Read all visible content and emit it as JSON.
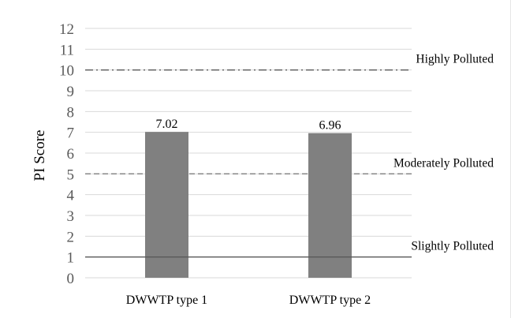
{
  "chart_data": {
    "type": "bar",
    "title": "",
    "xlabel": "",
    "ylabel": "PI Score",
    "ylim": [
      0,
      12
    ],
    "yticks": [
      0,
      1,
      2,
      3,
      4,
      5,
      6,
      7,
      8,
      9,
      10,
      11,
      12
    ],
    "grid": true,
    "categories": [
      "DWWTP type 1",
      "DWWTP type 2"
    ],
    "values": [
      7.02,
      6.96
    ],
    "data_labels": [
      "7.02",
      "6.96"
    ],
    "bar_color": "#808080",
    "reference_lines": [
      {
        "label": "Highly Polluted",
        "value": 10,
        "style": "dash-dot",
        "color": "#595959"
      },
      {
        "label": "Moderately Polluted",
        "value": 5,
        "style": "dashed",
        "color": "#7f7f7f"
      },
      {
        "label": "Slightly Polluted",
        "value": 1,
        "style": "solid",
        "color": "#595959"
      }
    ]
  }
}
